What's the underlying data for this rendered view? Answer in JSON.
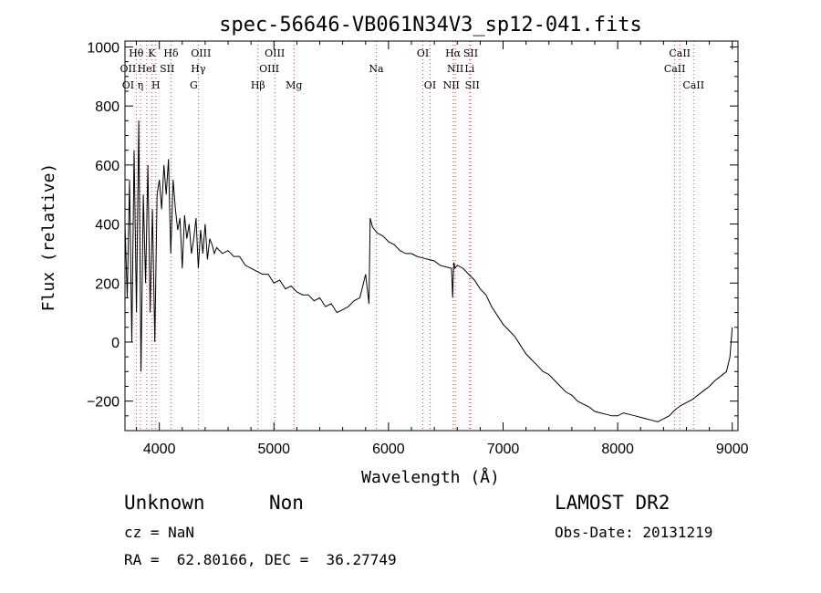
{
  "chart_data": {
    "type": "line",
    "title": "spec-56646-VB061N34V3_sp12-041.fits",
    "xlabel": "Wavelength (Å)",
    "ylabel": "Flux (relative)",
    "xlim": [
      3700,
      9050
    ],
    "ylim": [
      -300,
      1020
    ],
    "x_ticks": [
      4000,
      5000,
      6000,
      7000,
      8000,
      9000
    ],
    "y_ticks": [
      -200,
      0,
      200,
      400,
      600,
      800,
      1000
    ],
    "grid": false,
    "legend": "none",
    "line_color": "#000000",
    "marker_line_color": "#dc3c3c",
    "series": [
      {
        "x": [
          3700,
          3720,
          3740,
          3760,
          3780,
          3800,
          3820,
          3840,
          3860,
          3880,
          3900,
          3920,
          3940,
          3960,
          3980,
          4000,
          4020,
          4040,
          4060,
          4080,
          4100,
          4120,
          4140,
          4160,
          4180,
          4200,
          4220,
          4240,
          4260,
          4280,
          4300,
          4320,
          4340,
          4360,
          4380,
          4400,
          4420,
          4440,
          4460,
          4480,
          4500,
          4550,
          4600,
          4650,
          4700,
          4750,
          4800,
          4850,
          4900,
          4950,
          5000,
          5050,
          5100,
          5150,
          5200,
          5250,
          5300,
          5350,
          5400,
          5450,
          5500,
          5550,
          5600,
          5650,
          5700,
          5750,
          5800,
          5830,
          5840,
          5860,
          5880,
          5900,
          5950,
          6000,
          6050,
          6100,
          6150,
          6200,
          6250,
          6300,
          6350,
          6400,
          6450,
          6500,
          6550,
          6560,
          6570,
          6580,
          6600,
          6650,
          6700,
          6750,
          6800,
          6850,
          6900,
          6950,
          7000,
          7050,
          7100,
          7150,
          7200,
          7250,
          7300,
          7350,
          7400,
          7450,
          7500,
          7550,
          7600,
          7650,
          7700,
          7750,
          7800,
          7850,
          7900,
          7950,
          8000,
          8050,
          8100,
          8150,
          8200,
          8250,
          8300,
          8350,
          8400,
          8450,
          8500,
          8550,
          8600,
          8650,
          8700,
          8750,
          8800,
          8850,
          8900,
          8950,
          8980,
          9000
        ],
        "y": [
          400,
          150,
          550,
          0,
          650,
          100,
          750,
          -100,
          500,
          200,
          600,
          100,
          450,
          0,
          500,
          550,
          450,
          600,
          500,
          620,
          300,
          550,
          450,
          380,
          420,
          250,
          430,
          350,
          400,
          300,
          350,
          420,
          250,
          380,
          300,
          400,
          280,
          350,
          330,
          300,
          320,
          300,
          310,
          290,
          290,
          260,
          250,
          240,
          230,
          230,
          200,
          210,
          180,
          190,
          170,
          160,
          160,
          140,
          150,
          120,
          130,
          100,
          110,
          120,
          140,
          150,
          230,
          130,
          420,
          390,
          380,
          370,
          360,
          340,
          330,
          310,
          300,
          300,
          290,
          285,
          280,
          275,
          260,
          255,
          250,
          150,
          270,
          250,
          260,
          250,
          230,
          210,
          180,
          160,
          120,
          90,
          60,
          40,
          20,
          -10,
          -40,
          -60,
          -80,
          -100,
          -110,
          -130,
          -150,
          -170,
          -180,
          -200,
          -210,
          -220,
          -235,
          -240,
          -245,
          -250,
          -250,
          -240,
          -245,
          -250,
          -255,
          -260,
          -265,
          -270,
          -260,
          -250,
          -230,
          -215,
          -205,
          -195,
          -180,
          -165,
          -150,
          -130,
          -115,
          -100,
          -50,
          50
        ]
      }
    ],
    "line_markers": [
      {
        "x": 3798,
        "label": "Hθ",
        "row": 0
      },
      {
        "x": 3835,
        "label": "",
        "row": 0
      },
      {
        "x": 3889,
        "label": "",
        "row": 0
      },
      {
        "x": 3934,
        "label": "K",
        "row": 0
      },
      {
        "x": 3969,
        "label": "H",
        "row": 2
      },
      {
        "x": 4102,
        "label": "Hδ",
        "row": 0
      },
      {
        "x": 4340,
        "label": "Hγ",
        "row": 1
      },
      {
        "x": 4861,
        "label": "Hβ",
        "row": 2
      },
      {
        "x": 5007,
        "label": "OIII",
        "row": 0
      },
      {
        "x": 5175,
        "label": "Mg",
        "row": 2
      },
      {
        "x": 5893,
        "label": "Na",
        "row": 1
      },
      {
        "x": 6300,
        "label": "OI",
        "row": 0
      },
      {
        "x": 6363,
        "label": "OI",
        "row": 2
      },
      {
        "x": 6563,
        "label": "Hα",
        "row": 0
      },
      {
        "x": 6583,
        "label": "NII",
        "row": 1
      },
      {
        "x": 6708,
        "label": "Li",
        "row": 1
      },
      {
        "x": 6717,
        "label": "SII",
        "row": 0
      },
      {
        "x": 8498,
        "label": "CaII",
        "row": 1
      },
      {
        "x": 8542,
        "label": "CaII",
        "row": 0
      },
      {
        "x": 8662,
        "label": "CaII",
        "row": 2
      }
    ],
    "extra_labels": [
      {
        "x": 3727,
        "label": "OII",
        "row": 1
      },
      {
        "x": 3727,
        "label": "OI",
        "row": 2
      },
      {
        "x": 3835,
        "label": "η",
        "row": 2
      },
      {
        "x": 3889,
        "label": "HeI",
        "row": 1
      },
      {
        "x": 4068,
        "label": "SII",
        "row": 1
      },
      {
        "x": 4363,
        "label": "OIII",
        "row": 0
      },
      {
        "x": 4300,
        "label": "G",
        "row": 2
      },
      {
        "x": 4959,
        "label": "OIII",
        "row": 1
      },
      {
        "x": 6548,
        "label": "NII",
        "row": 2
      },
      {
        "x": 6731,
        "label": "SII",
        "row": 2
      }
    ]
  },
  "footer": {
    "class_label": "Unknown",
    "subclass_label": "Non",
    "survey": "LAMOST DR2",
    "cz": "cz = NaN",
    "obs_date": "Obs-Date: 20131219",
    "coords": "RA =  62.80166, DEC =  36.27749"
  }
}
